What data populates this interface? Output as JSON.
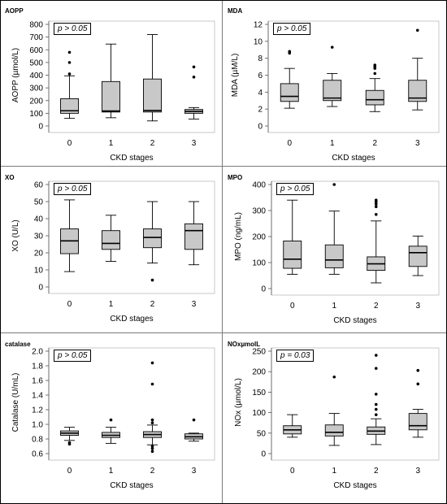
{
  "colors": {
    "box": "#c8c8c8",
    "line": "#000000",
    "panel_border": "#7a7a7a",
    "frame": "#000000"
  },
  "chart_data": [
    {
      "type": "boxplot",
      "title": "AOPP",
      "annotation": "p > 0.05",
      "xlabel": "CKD stages",
      "ylabel": "AOPP (µmol/L)",
      "categories": [
        "0",
        "1",
        "2",
        "3"
      ],
      "ylim": [
        0,
        800
      ],
      "yticks": [
        0,
        100,
        200,
        300,
        400,
        500,
        600,
        700,
        800
      ],
      "boxes": [
        {
          "whisker_low": 60,
          "q1": 100,
          "median": 120,
          "q3": 215,
          "whisker_high": 395,
          "outliers": [
            410,
            500,
            580
          ]
        },
        {
          "whisker_low": 65,
          "q1": 110,
          "median": 118,
          "q3": 350,
          "whisker_high": 645,
          "outliers": []
        },
        {
          "whisker_low": 40,
          "q1": 110,
          "median": 122,
          "q3": 370,
          "whisker_high": 720,
          "outliers": []
        },
        {
          "whisker_low": 55,
          "q1": 100,
          "median": 115,
          "q3": 130,
          "whisker_high": 145,
          "outliers": [
            385,
            465
          ]
        }
      ]
    },
    {
      "type": "boxplot",
      "title": "MDA",
      "annotation": "p > 0.05",
      "xlabel": "CKD stages",
      "ylabel": "MDA (µM/L)",
      "categories": [
        "0",
        "1",
        "2",
        "3"
      ],
      "ylim": [
        0,
        12
      ],
      "yticks": [
        0,
        2,
        4,
        6,
        8,
        10,
        12
      ],
      "boxes": [
        {
          "whisker_low": 2.1,
          "q1": 2.9,
          "median": 3.5,
          "q3": 5.0,
          "whisker_high": 6.8,
          "outliers": [
            8.6,
            8.8
          ]
        },
        {
          "whisker_low": 2.3,
          "q1": 3.0,
          "median": 3.3,
          "q3": 5.4,
          "whisker_high": 6.2,
          "outliers": [
            9.3
          ]
        },
        {
          "whisker_low": 1.7,
          "q1": 2.5,
          "median": 3.1,
          "q3": 4.2,
          "whisker_high": 5.6,
          "outliers": [
            6.2,
            6.8,
            7.0,
            7.2
          ]
        },
        {
          "whisker_low": 1.9,
          "q1": 2.9,
          "median": 3.3,
          "q3": 5.4,
          "whisker_high": 8.0,
          "outliers": [
            11.3
          ]
        }
      ]
    },
    {
      "type": "boxplot",
      "title": "XO",
      "annotation": "p > 0.05",
      "xlabel": "CKD stages",
      "ylabel": "XO (U/L)",
      "categories": [
        "0",
        "1",
        "2",
        "3"
      ],
      "ylim": [
        0,
        60
      ],
      "yticks": [
        0,
        10,
        20,
        30,
        40,
        50,
        60
      ],
      "boxes": [
        {
          "whisker_low": 9,
          "q1": 19.5,
          "median": 27,
          "q3": 34,
          "whisker_high": 51,
          "outliers": []
        },
        {
          "whisker_low": 15,
          "q1": 22,
          "median": 25.5,
          "q3": 33,
          "whisker_high": 42,
          "outliers": []
        },
        {
          "whisker_low": 14,
          "q1": 23,
          "median": 29,
          "q3": 34,
          "whisker_high": 50,
          "outliers": [
            4
          ]
        },
        {
          "whisker_low": 13,
          "q1": 22,
          "median": 33,
          "q3": 37,
          "whisker_high": 50,
          "outliers": []
        }
      ]
    },
    {
      "type": "boxplot",
      "title": "MPO",
      "annotation": "p > 0.05",
      "xlabel": "CKD stages",
      "ylabel": "MPO (ng/mL)",
      "categories": [
        "0",
        "1",
        "2",
        "3"
      ],
      "ylim": [
        0,
        400
      ],
      "yticks": [
        0,
        100,
        200,
        300,
        400
      ],
      "boxes": [
        {
          "whisker_low": 55,
          "q1": 78,
          "median": 113,
          "q3": 183,
          "whisker_high": 340,
          "outliers": []
        },
        {
          "whisker_low": 55,
          "q1": 80,
          "median": 110,
          "q3": 168,
          "whisker_high": 298,
          "outliers": [
            400
          ]
        },
        {
          "whisker_low": 22,
          "q1": 70,
          "median": 95,
          "q3": 122,
          "whisker_high": 260,
          "outliers": [
            285,
            315,
            325,
            333,
            340
          ]
        },
        {
          "whisker_low": 50,
          "q1": 85,
          "median": 138,
          "q3": 163,
          "whisker_high": 202,
          "outliers": []
        }
      ]
    },
    {
      "type": "boxplot",
      "title": "catalase",
      "annotation": "p > 0.05",
      "xlabel": "CKD stages",
      "ylabel": "Catalase (U/mL)",
      "categories": [
        "0",
        "1",
        "2",
        "3"
      ],
      "ylim": [
        0.6,
        2.0
      ],
      "yticks": [
        0.6,
        0.8,
        1.0,
        1.2,
        1.4,
        1.6,
        1.8,
        2.0
      ],
      "boxes": [
        {
          "whisker_low": 0.78,
          "q1": 0.85,
          "median": 0.88,
          "q3": 0.91,
          "whisker_high": 0.96,
          "outliers": [
            0.73,
            0.75
          ]
        },
        {
          "whisker_low": 0.74,
          "q1": 0.82,
          "median": 0.85,
          "q3": 0.89,
          "whisker_high": 0.96,
          "outliers": [
            1.06
          ]
        },
        {
          "whisker_low": 0.72,
          "q1": 0.82,
          "median": 0.86,
          "q3": 0.9,
          "whisker_high": 0.99,
          "outliers": [
            0.63,
            0.67,
            0.7,
            1.02,
            1.06,
            1.55,
            1.84
          ]
        },
        {
          "whisker_low": 0.77,
          "q1": 0.8,
          "median": 0.83,
          "q3": 0.87,
          "whisker_high": 0.88,
          "outliers": [
            1.06
          ]
        }
      ]
    },
    {
      "type": "boxplot",
      "title": "NOxµmolL",
      "annotation": "p = 0.03",
      "xlabel": "CKD stages",
      "ylabel": "NOx (µmol/L)",
      "categories": [
        "0",
        "1",
        "2",
        "3"
      ],
      "ylim": [
        0,
        250
      ],
      "yticks": [
        0,
        50,
        100,
        150,
        200,
        250
      ],
      "boxes": [
        {
          "whisker_low": 40,
          "q1": 48,
          "median": 58,
          "q3": 68,
          "whisker_high": 95,
          "outliers": []
        },
        {
          "whisker_low": 20,
          "q1": 43,
          "median": 52,
          "q3": 70,
          "whisker_high": 98,
          "outliers": [
            187
          ]
        },
        {
          "whisker_low": 22,
          "q1": 47,
          "median": 55,
          "q3": 65,
          "whisker_high": 85,
          "outliers": [
            95,
            108,
            120,
            145,
            208,
            240
          ]
        },
        {
          "whisker_low": 40,
          "q1": 58,
          "median": 68,
          "q3": 98,
          "whisker_high": 108,
          "outliers": [
            170,
            203
          ]
        }
      ]
    }
  ]
}
